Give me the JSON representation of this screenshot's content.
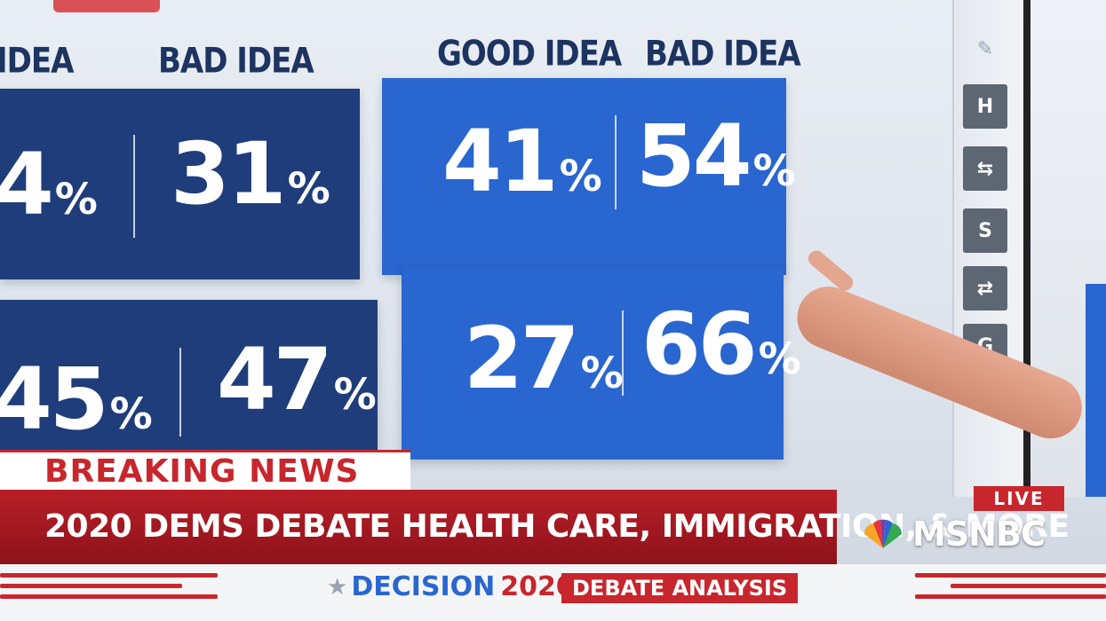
{
  "board": {
    "left_group": {
      "good_header": "IDEA",
      "bad_header": "BAD IDEA",
      "row1": {
        "good": "4",
        "bad": "31"
      },
      "row2": {
        "good": "45",
        "bad": "47"
      }
    },
    "right_group": {
      "good_header": "GOOD IDEA",
      "bad_header": "BAD IDEA",
      "row1": {
        "good": "41",
        "bad": "54"
      },
      "row2": {
        "good": "27",
        "bad": "66"
      }
    },
    "percent_sign": "%"
  },
  "toolbar": {
    "tools": [
      "H",
      "S",
      "G"
    ]
  },
  "lower_third": {
    "breaking": "BREAKING NEWS",
    "headline": "2020 DEMS DEBATE HEALTH CARE, IMMIGRATION, & MORE",
    "live": "LIVE",
    "network": "MSNBC"
  },
  "bottom_bar": {
    "decision": "DECISION",
    "year": "2020",
    "tag": "DEBATE ANALYSIS"
  },
  "colors": {
    "dark_panel": "#1f3d7a",
    "blue_panel": "#2a66cf",
    "breaking_red": "#c8262d"
  }
}
